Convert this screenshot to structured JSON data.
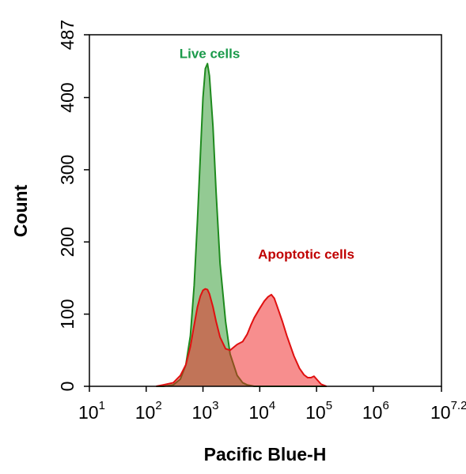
{
  "chart_data": {
    "type": "area",
    "xscale": "log",
    "xlabel": "Pacific Blue-H",
    "ylabel": "Count",
    "xlim": [
      10,
      15848931.924611134
    ],
    "ylim": [
      0,
      487
    ],
    "xticks": [
      {
        "value": 10,
        "label": "10",
        "exponent": "1"
      },
      {
        "value": 100,
        "label": "10",
        "exponent": "2"
      },
      {
        "value": 1000,
        "label": "10",
        "exponent": "3"
      },
      {
        "value": 10000,
        "label": "10",
        "exponent": "4"
      },
      {
        "value": 100000,
        "label": "10",
        "exponent": "5"
      },
      {
        "value": 1000000,
        "label": "10",
        "exponent": "6"
      },
      {
        "value": 15848931.924611134,
        "label": "10",
        "exponent": "7.2"
      }
    ],
    "yticks": [
      0,
      100,
      200,
      300,
      400,
      487
    ],
    "annotations": [
      {
        "text": "Live cells",
        "color": "#1a9a4a"
      },
      {
        "text": "Apoptotic cells",
        "color": "#c00000"
      }
    ],
    "x": [
      150,
      200,
      300,
      400,
      500,
      600,
      700,
      800,
      900,
      1000,
      1100,
      1200,
      1300,
      1500,
      1700,
      2000,
      2500,
      3000,
      4000,
      5000,
      6000,
      7000,
      8000,
      10000,
      12000,
      14000,
      16000,
      18000,
      20000,
      25000,
      30000,
      40000,
      50000,
      60000,
      70000,
      80000,
      90000,
      100000,
      120000,
      150000
    ],
    "series": [
      {
        "color": "#1e8a1e",
        "fill": "rgba(40,150,40,0.5)",
        "values": [
          0,
          0,
          2,
          10,
          30,
          70,
          140,
          230,
          320,
          400,
          440,
          447,
          430,
          360,
          270,
          170,
          90,
          45,
          15,
          5,
          2,
          1,
          0,
          0,
          0,
          0,
          0,
          0,
          0,
          0,
          0,
          0,
          0,
          0,
          0,
          0,
          0,
          0,
          0,
          0
        ]
      },
      {
        "color": "#e01010",
        "fill": "rgba(240,30,30,0.5)",
        "values": [
          0,
          2,
          5,
          15,
          30,
          55,
          85,
          110,
          125,
          133,
          135,
          134,
          128,
          110,
          90,
          68,
          52,
          50,
          58,
          62,
          72,
          85,
          95,
          108,
          118,
          124,
          127,
          122,
          112,
          90,
          70,
          42,
          25,
          16,
          12,
          12,
          14,
          10,
          3,
          0
        ]
      }
    ]
  }
}
